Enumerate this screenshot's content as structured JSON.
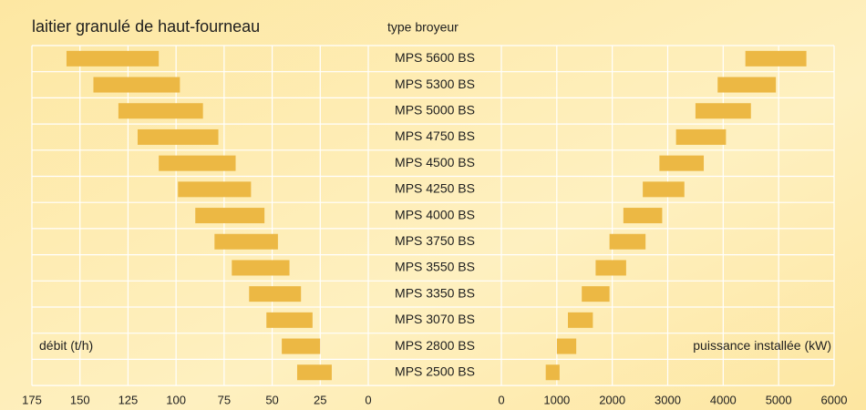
{
  "chart_data": {
    "type": "range-bar",
    "title": "laitier granulé de haut-fourneau",
    "category_label": "type broyeur",
    "categories": [
      "MPS 5600 BS",
      "MPS 5300 BS",
      "MPS 5000 BS",
      "MPS 4750 BS",
      "MPS 4500 BS",
      "MPS 4250 BS",
      "MPS 4000 BS",
      "MPS 3750 BS",
      "MPS 3550 BS",
      "MPS 3350 BS",
      "MPS 3070 BS",
      "MPS 2800 BS",
      "MPS 2500 BS"
    ],
    "grid": true,
    "panels": [
      {
        "axis_label": "débit (t/h)",
        "color": "#ecb844",
        "xlim": [
          175,
          0
        ],
        "xticks": [
          175,
          150,
          125,
          100,
          75,
          50,
          25,
          0
        ],
        "low": [
          109,
          98,
          86,
          78,
          69,
          61,
          54,
          47,
          41,
          35,
          29,
          25,
          19
        ],
        "high": [
          157,
          143,
          130,
          120,
          109,
          99,
          90,
          80,
          71,
          62,
          53,
          45,
          37
        ]
      },
      {
        "axis_label": "puissance installée (kW)",
        "color": "#ecb844",
        "xlim": [
          0,
          6000
        ],
        "xticks": [
          0,
          1000,
          2000,
          3000,
          4000,
          5000,
          6000
        ],
        "low": [
          4400,
          3900,
          3500,
          3150,
          2850,
          2550,
          2200,
          1950,
          1700,
          1450,
          1200,
          1000,
          800
        ],
        "high": [
          5500,
          4950,
          4500,
          4050,
          3650,
          3300,
          2900,
          2600,
          2250,
          1950,
          1650,
          1350,
          1050
        ]
      }
    ]
  }
}
